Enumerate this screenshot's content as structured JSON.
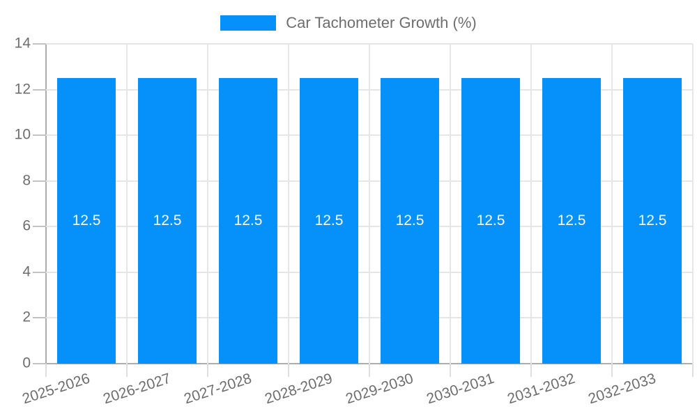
{
  "chart_data": {
    "type": "bar",
    "title": "",
    "legend": {
      "position": "top-center",
      "label": "Car Tachometer Growth (%)"
    },
    "categories": [
      "2025-2026",
      "2026-2027",
      "2027-2028",
      "2028-2029",
      "2029-2030",
      "2030-2031",
      "2031-2032",
      "2032-2033"
    ],
    "series": [
      {
        "name": "Car Tachometer Growth (%)",
        "values": [
          12.5,
          12.5,
          12.5,
          12.5,
          12.5,
          12.5,
          12.5,
          12.5
        ]
      }
    ],
    "bar_value_labels": [
      "12.5",
      "12.5",
      "12.5",
      "12.5",
      "12.5",
      "12.5",
      "12.5",
      "12.5"
    ],
    "xlabel": "",
    "ylabel": "",
    "ylim": [
      0,
      14
    ],
    "yticks": [
      0,
      2,
      4,
      6,
      8,
      10,
      12,
      14
    ],
    "grid": true,
    "x_label_rotation_deg": -18,
    "colors": {
      "bar": "#0590fa",
      "grid": "#e6e6e6",
      "axis": "#adadad",
      "tick": "#c2c2c2",
      "xtick": "#dedede",
      "label_text": "#6e6e6e",
      "value_text": "#ffffff",
      "background": "#ffffff"
    }
  }
}
